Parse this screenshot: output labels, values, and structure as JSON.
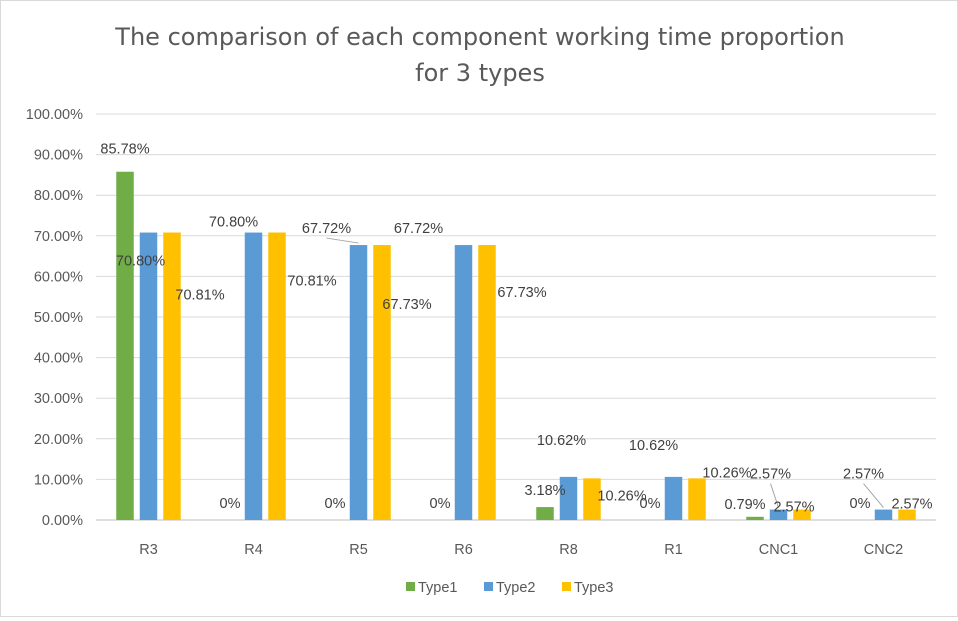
{
  "chart_data": {
    "type": "bar",
    "title_line1": "The comparison of each component working time proportion",
    "title_line2": "for 3 types",
    "xlabel": "",
    "ylabel": "",
    "ylim": [
      0,
      100
    ],
    "ytick_labels": [
      "0.00%",
      "10.00%",
      "20.00%",
      "30.00%",
      "40.00%",
      "50.00%",
      "60.00%",
      "70.00%",
      "80.00%",
      "90.00%",
      "100.00%"
    ],
    "categories": [
      "R3",
      "R4",
      "R5",
      "R6",
      "R8",
      "R1",
      "CNC1",
      "CNC2"
    ],
    "legend_position": "bottom",
    "grid": true,
    "series": [
      {
        "name": "Type1",
        "color": "#70ad47",
        "values": [
          85.78,
          0,
          0,
          0,
          3.18,
          0,
          0.79,
          0
        ],
        "labels": [
          "85.78%",
          "0%",
          "0%",
          "0%",
          "3.18%",
          "0%",
          "0.79%",
          "0%"
        ]
      },
      {
        "name": "Type2",
        "color": "#5b9bd5",
        "values": [
          70.8,
          70.8,
          67.72,
          67.72,
          10.62,
          10.62,
          2.57,
          2.57
        ],
        "labels": [
          "70.80%",
          "70.80%",
          "67.72%",
          "67.72%",
          "10.62%",
          "10.62%",
          "2.57%",
          "2.57%"
        ]
      },
      {
        "name": "Type3",
        "color": "#ffc000",
        "values": [
          70.81,
          70.81,
          67.73,
          67.73,
          10.26,
          10.26,
          2.57,
          2.57
        ],
        "labels": [
          "70.81%",
          "70.81%",
          "67.73%",
          "67.73%",
          "10.26%",
          "10.26%",
          "2.57%",
          "2.57%"
        ]
      }
    ]
  }
}
